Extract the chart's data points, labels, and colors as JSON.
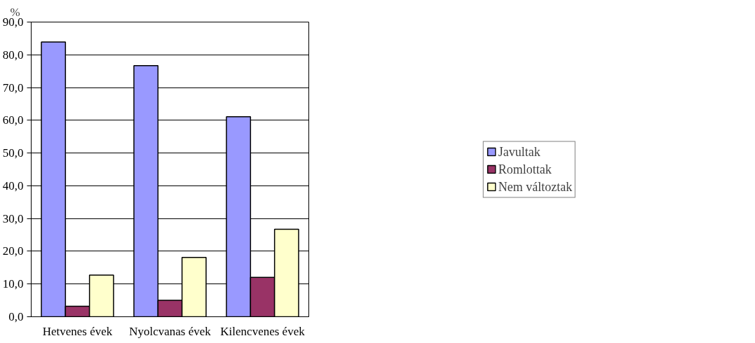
{
  "chart_data": {
    "type": "bar",
    "ylabel": "%",
    "categories": [
      "Hetvenes évek",
      "Nyolcvanas évek",
      "Kilencvenes évek"
    ],
    "series": [
      {
        "name": "Javultak",
        "color": "#9999ff",
        "values": [
          83.9,
          76.7,
          61.1
        ]
      },
      {
        "name": "Romlottak",
        "color": "#993366",
        "values": [
          3.2,
          5.0,
          12.0
        ]
      },
      {
        "name": "Nem változtak",
        "color": "#ffffcc",
        "values": [
          12.7,
          18.1,
          26.7
        ]
      }
    ],
    "ylim": [
      0,
      90
    ],
    "yticks": [
      {
        "value": 0,
        "label": "0,0"
      },
      {
        "value": 10,
        "label": "10,0"
      },
      {
        "value": 20,
        "label": "20,0"
      },
      {
        "value": 30,
        "label": "30,0"
      },
      {
        "value": 40,
        "label": "40,0"
      },
      {
        "value": 50,
        "label": "50,0"
      },
      {
        "value": 60,
        "label": "60,0"
      },
      {
        "value": 70,
        "label": "70,0"
      },
      {
        "value": 80,
        "label": "80,0"
      },
      {
        "value": 90,
        "label": "90,0"
      }
    ],
    "grid": "y",
    "legend": "right"
  }
}
